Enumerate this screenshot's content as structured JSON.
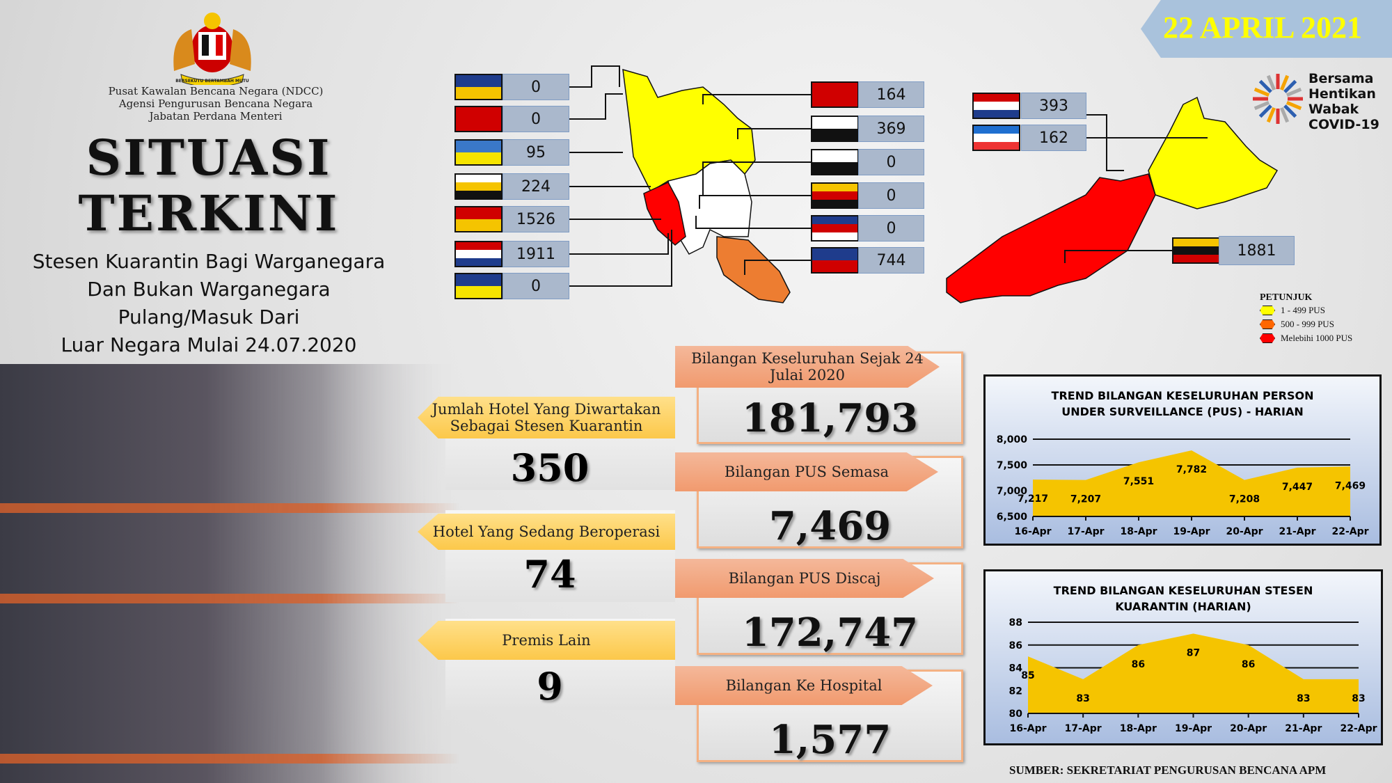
{
  "header": {
    "agency_lines": [
      "Pusat Kawalan Bencana Negara (NDCC)",
      "Agensi Pengurusan Bencana Negara",
      "Jabatan Perdana Menteri"
    ],
    "crest_motto": "BERSEKUTU BERTAMBAH MUTU",
    "title_line1": "SITUASI",
    "title_line2": "TERKINI",
    "subtitle_lines": [
      "Stesen Kuarantin Bagi Warganegara",
      "Dan Bukan Warganegara",
      "Pulang/Masuk Dari",
      "Luar Negara Mulai 24.07.2020"
    ]
  },
  "date": "22 APRIL 2021",
  "campaign_logo": [
    "Bersama",
    "Hentikan",
    "Wabak",
    "COVID-19"
  ],
  "states_left": [
    {
      "flag": "perlis",
      "value": "0",
      "c": [
        "#1f3c8c",
        "#f5c400"
      ]
    },
    {
      "flag": "kedah",
      "value": "0",
      "c": [
        "#d00000",
        "#d00000"
      ]
    },
    {
      "flag": "pulau-pinang",
      "value": "95",
      "c": [
        "#3a78c9",
        "#f5e400"
      ]
    },
    {
      "flag": "perak",
      "value": "224",
      "c": [
        "#ffffff",
        "#f5c400",
        "#111111"
      ]
    },
    {
      "flag": "selangor",
      "value": "1526",
      "c": [
        "#d00000",
        "#f5c400"
      ]
    },
    {
      "flag": "melaka",
      "value": "1911",
      "c": [
        "#d00000",
        "#ffffff",
        "#1f3c8c"
      ]
    },
    {
      "flag": "wp-kuala-lumpur",
      "value": "0",
      "c": [
        "#1f3c8c",
        "#f5e400"
      ]
    }
  ],
  "states_right": [
    {
      "flag": "kelantan",
      "value": "164",
      "c": [
        "#d00000"
      ]
    },
    {
      "flag": "terengganu",
      "value": "369",
      "c": [
        "#ffffff",
        "#111111"
      ]
    },
    {
      "flag": "pahang",
      "value": "0",
      "c": [
        "#ffffff",
        "#111111"
      ]
    },
    {
      "flag": "negeri-sembilan",
      "value": "0",
      "c": [
        "#f5c400",
        "#d00000",
        "#111111"
      ]
    },
    {
      "flag": "wp-putrajaya",
      "value": "0",
      "c": [
        "#1f3c8c",
        "#d00000",
        "#ffffff"
      ]
    },
    {
      "flag": "johor",
      "value": "744",
      "c": [
        "#1f3c8c",
        "#d00000"
      ]
    }
  ],
  "states_borneo": [
    {
      "flag": "wp-labuan",
      "value": "393"
    },
    {
      "flag": "sabah",
      "value": "162"
    },
    {
      "flag": "sarawak",
      "value": "1881"
    }
  ],
  "legend": {
    "title": "PETUNJUK",
    "items": [
      {
        "label": "1 - 499 PUS",
        "color": "#ffff00"
      },
      {
        "label": "500 - 999 PUS",
        "color": "#ff6600"
      },
      {
        "label": "Melebihi 1000 PUS",
        "color": "#ff0000"
      }
    ]
  },
  "map_colors": {
    "low": "#ffff00",
    "mid": "#ed7d31",
    "high": "#ff0000",
    "none": "#ffffff"
  },
  "stats_right": [
    {
      "label": "Bilangan Keseluruhan Sejak 24 Julai 2020",
      "value": "181,793"
    },
    {
      "label": "Bilangan PUS Semasa",
      "value": "7,469"
    },
    {
      "label": "Bilangan PUS Discaj",
      "value": "172,747"
    },
    {
      "label": "Bilangan Ke Hospital",
      "value": "1,577"
    }
  ],
  "stats_left": [
    {
      "label": "Jumlah Hotel Yang Diwartakan Sebagai Stesen Kuarantin",
      "value": "350"
    },
    {
      "label": "Hotel Yang Sedang Beroperasi",
      "value": "74"
    },
    {
      "label": "Premis Lain",
      "value": "9"
    }
  ],
  "chart_data": [
    {
      "type": "area",
      "title": "TREND BILANGAN KESELURUHAN PERSON UNDER SURVEILLANCE (PUS) - HARIAN",
      "categories": [
        "16-Apr",
        "17-Apr",
        "18-Apr",
        "19-Apr",
        "20-Apr",
        "21-Apr",
        "22-Apr"
      ],
      "values": [
        7217,
        7207,
        7551,
        7782,
        7208,
        7447,
        7469
      ],
      "value_labels": [
        "7,217",
        "7,207",
        "7,551",
        "7,782",
        "7,208",
        "7,447",
        "7,469"
      ],
      "yticks": [
        "6,500",
        "7,000",
        "7,500",
        "8,000"
      ],
      "ylim": [
        6500,
        8000
      ],
      "color": "#f5c400",
      "grid": true
    },
    {
      "type": "area",
      "title": "TREND BILANGAN KESELURUHAN STESEN KUARANTIN (HARIAN)",
      "categories": [
        "16-Apr",
        "17-Apr",
        "18-Apr",
        "19-Apr",
        "20-Apr",
        "21-Apr",
        "22-Apr"
      ],
      "values": [
        85,
        83,
        86,
        87,
        86,
        83,
        83
      ],
      "value_labels": [
        "85",
        "83",
        "86",
        "87",
        "86",
        "83",
        "83"
      ],
      "yticks": [
        "80",
        "82",
        "84",
        "86",
        "88"
      ],
      "ylim": [
        80,
        88
      ],
      "color": "#f5c400",
      "grid": true
    }
  ],
  "source": "SUMBER: SEKRETARIAT PENGURUSAN BENCANA APM"
}
